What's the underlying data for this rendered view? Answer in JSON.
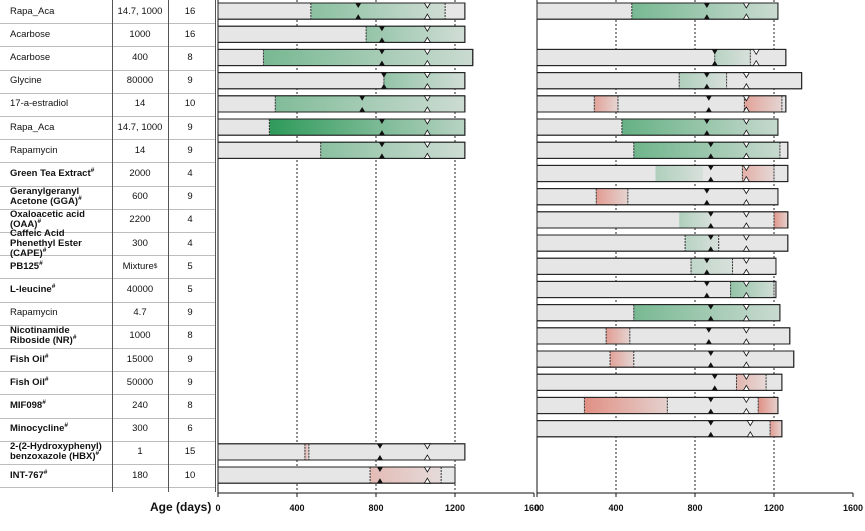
{
  "axis_label": "Age (days)",
  "colors": {
    "green": "#2e9a5a",
    "red": "#de6b5a",
    "grey": "#e6e6e6"
  },
  "chart_data": {
    "type": "bar",
    "title": "",
    "xlabel": "Age (days)",
    "panels": [
      {
        "name": "left",
        "xlim": [
          0,
          1600
        ],
        "ticks": [
          "0",
          "400",
          "800",
          "1200",
          "1600"
        ],
        "gridlines": [
          400,
          800,
          1200
        ]
      },
      {
        "name": "right",
        "xlim": [
          0,
          1600
        ],
        "ticks": [
          "0",
          "400",
          "800",
          "1200",
          "1600"
        ],
        "gridlines": [
          400,
          800,
          1200
        ]
      }
    ],
    "columns": [
      "Compound",
      "Dose",
      "N"
    ],
    "rows": [
      {
        "name": "Rapa_Aca",
        "sup": "",
        "bold": false,
        "dose": "14.7, 1000",
        "n": "16",
        "left": {
          "start": 0,
          "end": 1250,
          "lower": 470,
          "upper": 1150,
          "color": "green",
          "intensity": 0.5,
          "median": 710,
          "q3": 1060
        },
        "right": {
          "start": 0,
          "end": 1220,
          "lower": 480,
          "upper": 1220,
          "color": "green",
          "intensity": 0.6,
          "median": 860,
          "q3": 1060
        }
      },
      {
        "name": "Acarbose",
        "sup": "",
        "bold": false,
        "dose": "1000",
        "n": "16",
        "left": {
          "start": 0,
          "end": 1250,
          "lower": 750,
          "upper": 1250,
          "color": "green",
          "intensity": 0.45,
          "median": 830,
          "q3": 1060
        },
        "right": null
      },
      {
        "name": "Acarbose",
        "sup": "",
        "bold": false,
        "dose": "400",
        "n": "8",
        "left": {
          "start": 0,
          "end": 1290,
          "lower": 230,
          "upper": 1290,
          "color": "green",
          "intensity": 0.6,
          "median": 830,
          "q3": 1060
        },
        "right": {
          "start": 0,
          "end": 1260,
          "lower": 900,
          "upper": 1080,
          "color": "green",
          "intensity": 0.25,
          "median": 900,
          "q3": 1110
        }
      },
      {
        "name": "Glycine",
        "sup": "",
        "bold": false,
        "dose": "80000",
        "n": "9",
        "left": {
          "start": 0,
          "end": 1250,
          "lower": 840,
          "upper": 1250,
          "color": "green",
          "intensity": 0.45,
          "median": 840,
          "q3": 1060
        },
        "right": {
          "start": 0,
          "end": 1340,
          "lower": 720,
          "upper": 960,
          "color": "green",
          "intensity": 0.3,
          "median": 860,
          "q3": 1060
        }
      },
      {
        "name": "17-a-estradiol",
        "sup": "",
        "bold": false,
        "dose": "14",
        "n": "10",
        "left": {
          "start": 0,
          "end": 1250,
          "lower": 290,
          "upper": 1250,
          "color": "green",
          "intensity": 0.55,
          "median": 730,
          "q3": 1060
        },
        "right": {
          "start": 0,
          "end": 1260,
          "lower": 1050,
          "upper": 1240,
          "color": "red",
          "intensity": 0.55,
          "median": 870,
          "q3": 1060,
          "lower2": 290,
          "upper2": 410
        }
      },
      {
        "name": "Rapa_Aca",
        "sup": "",
        "bold": false,
        "dose": "14.7, 1000",
        "n": "9",
        "left": {
          "start": 0,
          "end": 1250,
          "lower": 260,
          "upper": 1250,
          "color": "green",
          "intensity": 1.0,
          "median": 830,
          "q3": 1060
        },
        "right": {
          "start": 0,
          "end": 1220,
          "lower": 430,
          "upper": 1220,
          "color": "green",
          "intensity": 0.7,
          "median": 860,
          "q3": 1060
        }
      },
      {
        "name": "Rapamycin",
        "sup": "",
        "bold": false,
        "dose": "14",
        "n": "9",
        "left": {
          "start": 0,
          "end": 1250,
          "lower": 520,
          "upper": 1250,
          "color": "green",
          "intensity": 0.5,
          "median": 830,
          "q3": 1060
        },
        "right": {
          "start": 0,
          "end": 1270,
          "lower": 490,
          "upper": 1230,
          "color": "green",
          "intensity": 0.65,
          "median": 880,
          "q3": 1060
        }
      },
      {
        "name": "Green Tea Extract",
        "sup": "#",
        "bold": true,
        "dose": "2000",
        "n": "4",
        "left": null,
        "right": {
          "start": 0,
          "end": 1270,
          "lower": 1040,
          "upper": 1200,
          "color": "red",
          "intensity": 0.45,
          "median": 880,
          "q3": 1060,
          "lower3": 600,
          "upper3": 840
        }
      },
      {
        "name": "Geranylgeranyl Acetone (GGA)",
        "sup": "#",
        "bold": true,
        "dose": "600",
        "n": "9",
        "left": null,
        "right": {
          "start": 0,
          "end": 1220,
          "lower": 300,
          "upper": 460,
          "color": "red",
          "intensity": 0.6,
          "median": 860,
          "q3": 1060
        }
      },
      {
        "name": "Oxaloacetic acid (OAA)",
        "sup": "#",
        "bold": true,
        "dose": "2200",
        "n": "4",
        "left": null,
        "right": {
          "start": 0,
          "end": 1270,
          "lower": 1200,
          "upper": 1270,
          "color": "red",
          "intensity": 0.65,
          "median": 880,
          "q3": 1060,
          "lower3": 720,
          "upper3": 880
        }
      },
      {
        "name": "Caffeic Acid Phenethyl Ester (CAPE)",
        "sup": "#",
        "bold": true,
        "dose": "300",
        "n": "4",
        "left": null,
        "right": {
          "start": 0,
          "end": 1270,
          "lower": 750,
          "upper": 920,
          "color": "green",
          "intensity": 0.25,
          "median": 880,
          "q3": 1060
        }
      },
      {
        "name": "PB125",
        "sup": "#",
        "bold": true,
        "dose": "Mixture",
        "dose_sup": "$",
        "n": "5",
        "left": null,
        "right": {
          "start": 0,
          "end": 1210,
          "lower": 780,
          "upper": 990,
          "color": "green",
          "intensity": 0.2,
          "median": 860,
          "q3": 1060
        }
      },
      {
        "name": "L-leucine",
        "sup": "#",
        "bold": true,
        "dose": "40000",
        "n": "5",
        "left": null,
        "right": {
          "start": 0,
          "end": 1210,
          "lower": 980,
          "upper": 1200,
          "color": "green",
          "intensity": 0.45,
          "median": 860,
          "q3": 1060
        }
      },
      {
        "name": "Rapamycin",
        "sup": "",
        "bold": false,
        "dose": "4.7",
        "n": "9",
        "left": null,
        "right": {
          "start": 0,
          "end": 1230,
          "lower": 490,
          "upper": 1230,
          "color": "green",
          "intensity": 0.6,
          "median": 880,
          "q3": 1060
        }
      },
      {
        "name": "Nicotinamide Riboside (NR)",
        "sup": "#",
        "bold": true,
        "dose": "1000",
        "n": "8",
        "left": null,
        "right": {
          "start": 0,
          "end": 1280,
          "lower": 350,
          "upper": 470,
          "color": "red",
          "intensity": 0.6,
          "median": 870,
          "q3": 1060
        }
      },
      {
        "name": "Fish Oil",
        "sup": "#",
        "bold": true,
        "dose": "15000",
        "n": "9",
        "left": null,
        "right": {
          "start": 0,
          "end": 1300,
          "lower": 370,
          "upper": 490,
          "color": "red",
          "intensity": 0.55,
          "median": 880,
          "q3": 1060
        }
      },
      {
        "name": "Fish Oil",
        "sup": "#",
        "bold": true,
        "dose": "50000",
        "n": "9",
        "left": null,
        "right": {
          "start": 0,
          "end": 1240,
          "lower": 1010,
          "upper": 1160,
          "color": "red",
          "intensity": 0.4,
          "median": 900,
          "q3": 1060
        }
      },
      {
        "name": "MIF098",
        "sup": "#",
        "bold": true,
        "dose": "240",
        "n": "8",
        "left": null,
        "right": {
          "start": 0,
          "end": 1220,
          "lower": 240,
          "upper": 660,
          "color": "red",
          "intensity": 0.7,
          "median": 880,
          "q3": 1060,
          "lower2": 1120,
          "upper2": 1220
        }
      },
      {
        "name": "Minocycline",
        "sup": "#",
        "bold": true,
        "dose": "300",
        "n": "6",
        "left": null,
        "right": {
          "start": 0,
          "end": 1240,
          "lower": 1180,
          "upper": 1240,
          "color": "red",
          "intensity": 0.6,
          "median": 880,
          "q3": 1080
        }
      },
      {
        "name": "2-(2-Hydroxyphenyl) benzoxazole (HBX)",
        "sup": "#",
        "bold": true,
        "dose": "1",
        "n": "15",
        "left": {
          "start": 0,
          "end": 1250,
          "lower": 440,
          "upper": 460,
          "color": "red",
          "intensity": 0.4,
          "median": 820,
          "q3": 1060
        },
        "right": null
      },
      {
        "name": "INT-767",
        "sup": "#",
        "bold": true,
        "dose": "180",
        "n": "10",
        "left": {
          "start": 0,
          "end": 1200,
          "lower": 770,
          "upper": 1130,
          "color": "red",
          "intensity": 0.35,
          "median": 820,
          "q3": 1060
        },
        "right": null
      }
    ]
  }
}
